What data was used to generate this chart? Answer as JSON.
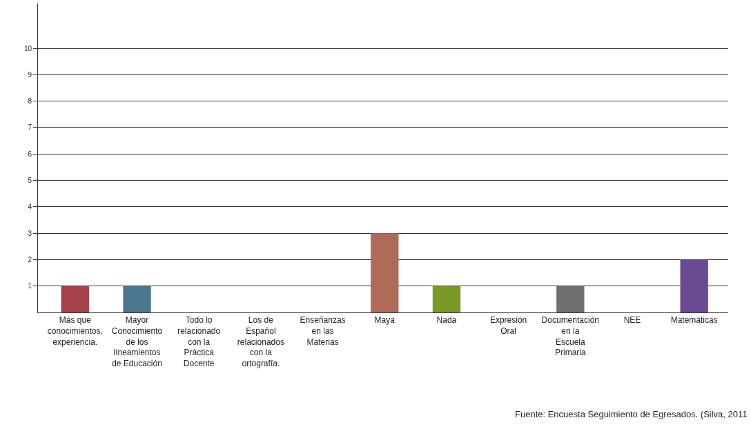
{
  "chart_data": {
    "type": "bar",
    "categories": [
      "Más que conocimientos, experiencia.",
      "Mayor Conocimiento de los líneamientos de Educación",
      "Todo lo relacionado con la Práctica Docente",
      "Los de Español relacionados con la ortografía.",
      "Enseñanzas en las Materias",
      "Maya",
      "Nada",
      "Expresión Oral",
      "Documentación en la Escuela Primaria",
      "NEE",
      "Matemáticas"
    ],
    "values": [
      1,
      1,
      0,
      0,
      0,
      3,
      1,
      0,
      1,
      0,
      2
    ],
    "colors": [
      "#a8404a",
      "#4a7890",
      "#888888",
      "#888888",
      "#888888",
      "#b06a58",
      "#7a9a28",
      "#888888",
      "#707070",
      "#888888",
      "#6a4a90"
    ],
    "ylim": [
      0,
      11.7
    ],
    "yticks": [
      1,
      2,
      3,
      4,
      5,
      6,
      7,
      8,
      9,
      10
    ],
    "grid": "y",
    "legend": false,
    "annotations": [
      "Fuente: Encuesta Seguimiento de Egresados. (Silva, 2011"
    ]
  }
}
